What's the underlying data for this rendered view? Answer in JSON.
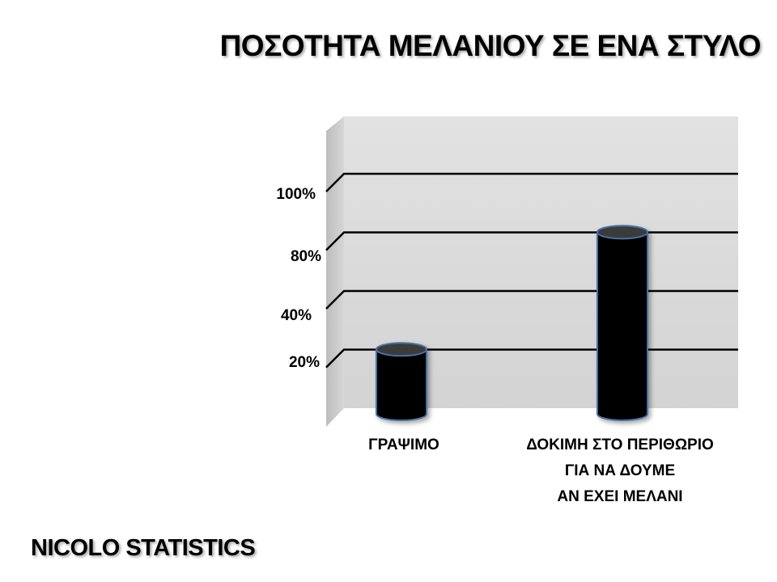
{
  "title": "ΠΟΣΟΤΗΤΑ ΜΕΛΑΝΙΟΥ ΣΕ ΕΝΑ ΣΤΥΛΟ",
  "footer": "NICOLO STATISTICS",
  "colors": {
    "wall": "#d9d9d9",
    "side_wall": "#c8c8c8",
    "bar_fill": "#000000",
    "bar_edge": "#4a6fa5",
    "gridline": "#000000"
  },
  "chart_data": {
    "type": "bar",
    "style": "3d-cylinder",
    "categories": [
      [
        "ΓΡΑΨΙΜΟ"
      ],
      [
        "ΔΟΚΙΜΗ ΣΤΟ ΠΕΡΙΘΩΡΙΟ",
        "ΓΙΑ ΝΑ ΔΟΥΜΕ",
        "ΑΝ ΕΧΕΙ ΜΕΛΑΝΙ"
      ]
    ],
    "y_tick_labels": [
      "20%",
      "40%",
      "80%",
      "100%"
    ],
    "y_levels": [
      1,
      2,
      3,
      4
    ],
    "y_max": 5,
    "values": [
      1.1,
      3.1
    ],
    "grid": true,
    "legend": "none"
  }
}
